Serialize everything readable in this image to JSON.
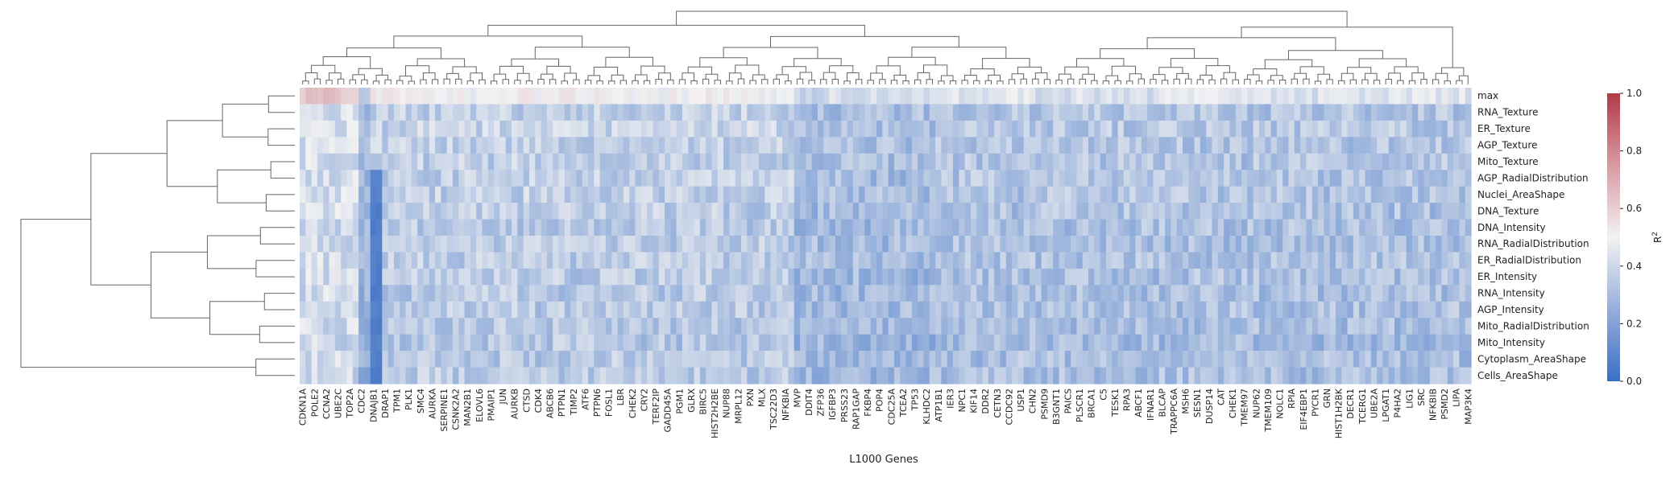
{
  "chart_data": {
    "type": "heatmap",
    "title": "",
    "xlabel": "L1000 Genes",
    "ylabel": "",
    "colorbar": {
      "label": "R²",
      "label_base": "R",
      "label_sup": "2",
      "vmin": 0.0,
      "vmax": 1.0,
      "ticks": [
        "0.0",
        "0.2",
        "0.4",
        "0.6",
        "0.8",
        "1.0"
      ],
      "colormap": [
        "#3b6fc4",
        "#f2f2f2",
        "#b23a48"
      ]
    },
    "row_dendrogram": true,
    "col_dendrogram": true,
    "rows": [
      "max",
      "RNA_Texture",
      "ER_Texture",
      "AGP_Texture",
      "Mito_Texture",
      "AGP_RadialDistribution",
      "Nuclei_AreaShape",
      "DNA_Texture",
      "DNA_Intensity",
      "RNA_RadialDistribution",
      "ER_RadialDistribution",
      "ER_Intensity",
      "RNA_Intensity",
      "AGP_Intensity",
      "Mito_RadialDistribution",
      "Mito_Intensity",
      "Cytoplasm_AreaShape",
      "Cells_AreaShape"
    ],
    "columns": [
      "CDKN1A",
      "",
      "POLE2",
      "",
      "CCNA2",
      "",
      "UBE2C",
      "",
      "TOP2A",
      "",
      "CDC2",
      "",
      "DNAJB1",
      "",
      "DRAP1",
      "",
      "TPM1",
      "",
      "PLK1",
      "",
      "SMC4",
      "",
      "AURKA",
      "",
      "SERPINE1",
      "",
      "CSNK2A2",
      "",
      "MAN2B1",
      "",
      "ELOVL6",
      "",
      "PMAIP1",
      "",
      "JUN",
      "",
      "AURKB",
      "",
      "CTSD",
      "",
      "CDK4",
      "",
      "ABCB6",
      "",
      "PTPN1",
      "",
      "TIMP2",
      "",
      "ATF6",
      "",
      "PTPN6",
      "",
      "FOSL1",
      "",
      "LBR",
      "",
      "CHEK2",
      "",
      "CRY2",
      "",
      "TERF2IP",
      "",
      "GADD45A",
      "",
      "PGM1",
      "",
      "GLRX",
      "",
      "BIRC5",
      "",
      "HIST2H2BE",
      "",
      "NUP88",
      "",
      "MRPL12",
      "",
      "PXN",
      "",
      "MLX",
      "",
      "TSC22D3",
      "",
      "NFKBIA",
      "",
      "MVP",
      "",
      "DDIT4",
      "",
      "ZFP36",
      "",
      "IGFBP3",
      "",
      "PRSS23",
      "",
      "RAP1GAP",
      "",
      "FKBP4",
      "",
      "POP4",
      "",
      "CDC25A",
      "",
      "TCEA2",
      "",
      "TP53",
      "",
      "KLHDC2",
      "",
      "ATP1B1",
      "",
      "IER3",
      "",
      "NPC1",
      "",
      "KIF14",
      "",
      "DDR2",
      "",
      "CETN3",
      "",
      "CCDC92",
      "",
      "USP1",
      "",
      "CHN2",
      "",
      "PSMD9",
      "",
      "B3GNT1",
      "",
      "PAICS",
      "",
      "PLSCR1",
      "",
      "BRCA1",
      "",
      "C5",
      "",
      "TESK1",
      "",
      "RPA3",
      "",
      "ABCF1",
      "",
      "IFNAR1",
      "",
      "BLCAP",
      "",
      "TRAPPC6A",
      "",
      "MSH6",
      "",
      "SESN1",
      "",
      "DUSP14",
      "",
      "CAT",
      "",
      "CHEK1",
      "",
      "TMEM97",
      "",
      "NUP62",
      "",
      "TMEM109",
      "",
      "NOLC1",
      "",
      "RPIA",
      "",
      "EIF4EBP1",
      "",
      "PYCR1",
      "",
      "GRN",
      "",
      "HIST1H2BK",
      "",
      "DECR1",
      "",
      "TCERG1",
      "",
      "UBE2A",
      "",
      "LPGAT1",
      "",
      "P4HA2",
      "",
      "LIG1",
      "",
      "SRC",
      "",
      "NFKBIB",
      "",
      "PSMD2",
      "",
      "LIPA",
      "",
      "MAP3K4"
    ]
  }
}
